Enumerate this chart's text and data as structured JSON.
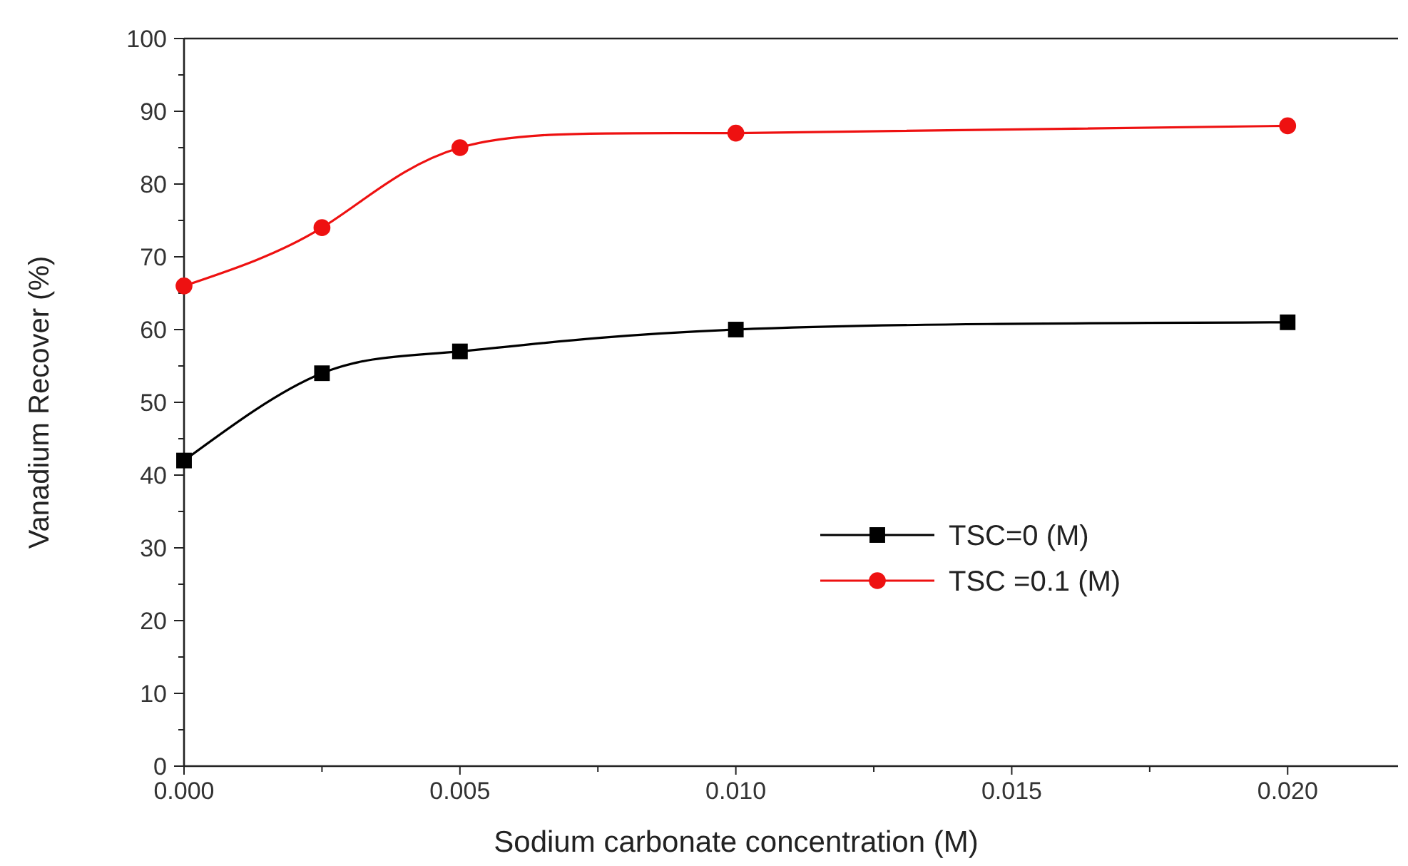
{
  "chart_data": {
    "type": "line",
    "xlabel": "Sodium carbonate concentration  (M)",
    "ylabel": "Vanadium Recover (%)",
    "x": [
      0,
      0.0025,
      0.005,
      0.01,
      0.02
    ],
    "series": [
      {
        "name": "TSC=0 (M)",
        "color": "#000000",
        "marker": "square",
        "values": [
          42,
          54,
          57,
          60,
          61
        ]
      },
      {
        "name": "TSC =0.1 (M)",
        "color": "#ee1111",
        "marker": "circle",
        "values": [
          66,
          74,
          85,
          87,
          88
        ]
      }
    ],
    "xlim": [
      0,
      0.022
    ],
    "xticks": [
      {
        "value": 0,
        "label": "0.000"
      },
      {
        "value": 0.0025,
        "label": null
      },
      {
        "value": 0.005,
        "label": "0.005"
      },
      {
        "value": 0.0075,
        "label": null
      },
      {
        "value": 0.01,
        "label": "0.010"
      },
      {
        "value": 0.0125,
        "label": null
      },
      {
        "value": 0.015,
        "label": "0.015"
      },
      {
        "value": 0.0175,
        "label": null
      },
      {
        "value": 0.02,
        "label": "0.020"
      }
    ],
    "ylim": [
      0,
      100
    ],
    "yticks": [
      0,
      {
        "value": 5,
        "label": null
      },
      10,
      {
        "value": 15,
        "label": null
      },
      20,
      {
        "value": 25,
        "label": null
      },
      30,
      {
        "value": 35,
        "label": null
      },
      40,
      {
        "value": 45,
        "label": null
      },
      50,
      {
        "value": 55,
        "label": null
      },
      60,
      {
        "value": 65,
        "label": null
      },
      70,
      {
        "value": 75,
        "label": null
      },
      80,
      {
        "value": 85,
        "label": null
      },
      90,
      {
        "value": 95,
        "label": null
      },
      100
    ],
    "grid": false,
    "legend": "right",
    "line_style": "solid"
  }
}
